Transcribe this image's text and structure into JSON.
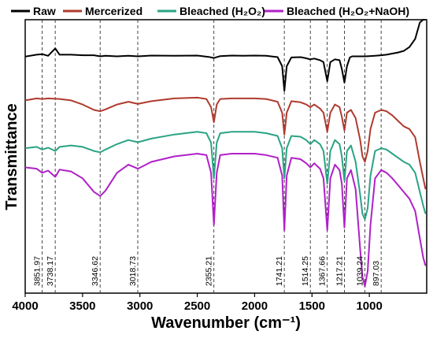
{
  "chart_data": {
    "type": "line",
    "xlabel": "Wavenumber (cm⁻¹)",
    "ylabel": "Transmittance",
    "xlim": [
      4000,
      500
    ],
    "x_reversed": true,
    "y_ticks_shown": false,
    "legend_position": "top",
    "x_ticks": [
      "4000",
      "3500",
      "3000",
      "2500",
      "2000",
      "1500",
      "1000"
    ],
    "peaks": [
      "3851.97",
      "3738.17",
      "3346.62",
      "3018.73",
      "2355.21",
      "1741.21",
      "1514.25",
      "1367.66",
      "1217.21",
      "1039.24",
      "897.03"
    ],
    "series": [
      {
        "name": "Raw",
        "color": "#000000",
        "x": [
          4000,
          3900,
          3852,
          3800,
          3738,
          3700,
          3600,
          3500,
          3400,
          3346,
          3300,
          3200,
          3100,
          3018,
          2900,
          2700,
          2500,
          2400,
          2355,
          2300,
          2200,
          2100,
          2000,
          1900,
          1800,
          1760,
          1741,
          1720,
          1680,
          1600,
          1560,
          1514,
          1480,
          1430,
          1400,
          1367,
          1340,
          1300,
          1260,
          1240,
          1217,
          1195,
          1170,
          1150,
          1120,
          1100,
          1060,
          1039,
          1000,
          950,
          897,
          850,
          800,
          750,
          700,
          650,
          600,
          560,
          530,
          510
        ],
        "y": [
          0.865,
          0.872,
          0.874,
          0.868,
          0.895,
          0.872,
          0.872,
          0.87,
          0.87,
          0.866,
          0.868,
          0.866,
          0.868,
          0.866,
          0.869,
          0.868,
          0.869,
          0.864,
          0.86,
          0.867,
          0.869,
          0.868,
          0.869,
          0.868,
          0.863,
          0.83,
          0.74,
          0.83,
          0.862,
          0.863,
          0.86,
          0.855,
          0.858,
          0.852,
          0.845,
          0.775,
          0.845,
          0.855,
          0.852,
          0.82,
          0.77,
          0.83,
          0.862,
          0.866,
          0.866,
          0.866,
          0.866,
          0.866,
          0.867,
          0.868,
          0.87,
          0.872,
          0.876,
          0.88,
          0.886,
          0.9,
          0.93,
          0.99,
          1.0,
          1.0
        ]
      },
      {
        "name": "Mercerized",
        "color": "#b03a2e",
        "x": [
          4000,
          3900,
          3852,
          3800,
          3700,
          3600,
          3500,
          3400,
          3346,
          3300,
          3200,
          3100,
          3018,
          2900,
          2700,
          2500,
          2420,
          2380,
          2355,
          2330,
          2300,
          2200,
          2100,
          2000,
          1900,
          1800,
          1760,
          1741,
          1720,
          1680,
          1600,
          1550,
          1514,
          1480,
          1430,
          1400,
          1367,
          1340,
          1300,
          1260,
          1240,
          1217,
          1195,
          1160,
          1120,
          1080,
          1060,
          1039,
          1015,
          990,
          950,
          897,
          850,
          800,
          750,
          700,
          650,
          600,
          560,
          530,
          510
        ],
        "y": [
          0.705,
          0.712,
          0.71,
          0.712,
          0.71,
          0.705,
          0.69,
          0.67,
          0.665,
          0.672,
          0.69,
          0.7,
          0.692,
          0.702,
          0.712,
          0.715,
          0.71,
          0.68,
          0.625,
          0.69,
          0.71,
          0.712,
          0.712,
          0.712,
          0.71,
          0.7,
          0.66,
          0.58,
          0.66,
          0.702,
          0.698,
          0.69,
          0.68,
          0.69,
          0.675,
          0.66,
          0.59,
          0.66,
          0.69,
          0.68,
          0.645,
          0.595,
          0.66,
          0.67,
          0.64,
          0.56,
          0.5,
          0.48,
          0.52,
          0.6,
          0.66,
          0.67,
          0.665,
          0.65,
          0.63,
          0.61,
          0.6,
          0.57,
          0.48,
          0.42,
          0.38
        ]
      },
      {
        "name": "Bleached (H₂O₂)",
        "color": "#2aa384",
        "x": [
          4000,
          3900,
          3852,
          3800,
          3738,
          3700,
          3600,
          3500,
          3400,
          3346,
          3300,
          3200,
          3100,
          3018,
          2900,
          2700,
          2500,
          2420,
          2380,
          2355,
          2330,
          2300,
          2200,
          2100,
          2000,
          1900,
          1800,
          1760,
          1741,
          1720,
          1680,
          1600,
          1550,
          1514,
          1480,
          1430,
          1400,
          1367,
          1340,
          1300,
          1260,
          1240,
          1217,
          1195,
          1160,
          1120,
          1080,
          1060,
          1039,
          1015,
          990,
          950,
          897,
          850,
          800,
          750,
          700,
          650,
          600,
          560,
          530,
          510
        ],
        "y": [
          0.53,
          0.535,
          0.525,
          0.532,
          0.52,
          0.535,
          0.54,
          0.535,
          0.52,
          0.515,
          0.525,
          0.545,
          0.56,
          0.552,
          0.565,
          0.58,
          0.59,
          0.585,
          0.55,
          0.42,
          0.55,
          0.585,
          0.59,
          0.59,
          0.59,
          0.585,
          0.575,
          0.53,
          0.42,
          0.53,
          0.575,
          0.572,
          0.56,
          0.545,
          0.56,
          0.545,
          0.52,
          0.4,
          0.52,
          0.56,
          0.545,
          0.5,
          0.41,
          0.52,
          0.54,
          0.48,
          0.36,
          0.29,
          0.27,
          0.31,
          0.43,
          0.52,
          0.53,
          0.525,
          0.51,
          0.495,
          0.48,
          0.47,
          0.44,
          0.37,
          0.32,
          0.29
        ]
      },
      {
        "name": "Bleached (H₂O₂+NaOH)",
        "color": "#b020c8",
        "x": [
          4000,
          3900,
          3852,
          3800,
          3738,
          3700,
          3600,
          3500,
          3400,
          3346,
          3300,
          3200,
          3100,
          3018,
          2900,
          2700,
          2500,
          2420,
          2380,
          2355,
          2330,
          2300,
          2200,
          2100,
          2000,
          1900,
          1800,
          1760,
          1741,
          1720,
          1680,
          1600,
          1550,
          1514,
          1480,
          1430,
          1400,
          1367,
          1340,
          1300,
          1260,
          1240,
          1217,
          1195,
          1160,
          1120,
          1080,
          1060,
          1039,
          1015,
          990,
          950,
          897,
          850,
          800,
          750,
          700,
          650,
          600,
          560,
          530,
          510
        ],
        "y": [
          0.46,
          0.455,
          0.44,
          0.448,
          0.425,
          0.452,
          0.445,
          0.42,
          0.37,
          0.355,
          0.375,
          0.44,
          0.47,
          0.455,
          0.48,
          0.5,
          0.51,
          0.505,
          0.44,
          0.25,
          0.44,
          0.505,
          0.51,
          0.51,
          0.51,
          0.505,
          0.495,
          0.43,
          0.23,
          0.43,
          0.495,
          0.49,
          0.475,
          0.46,
          0.475,
          0.455,
          0.42,
          0.23,
          0.42,
          0.47,
          0.45,
          0.4,
          0.24,
          0.42,
          0.45,
          0.38,
          0.16,
          0.06,
          0.025,
          0.08,
          0.25,
          0.42,
          0.45,
          0.44,
          0.42,
          0.395,
          0.37,
          0.345,
          0.3,
          0.2,
          0.13,
          0.1
        ]
      }
    ]
  }
}
